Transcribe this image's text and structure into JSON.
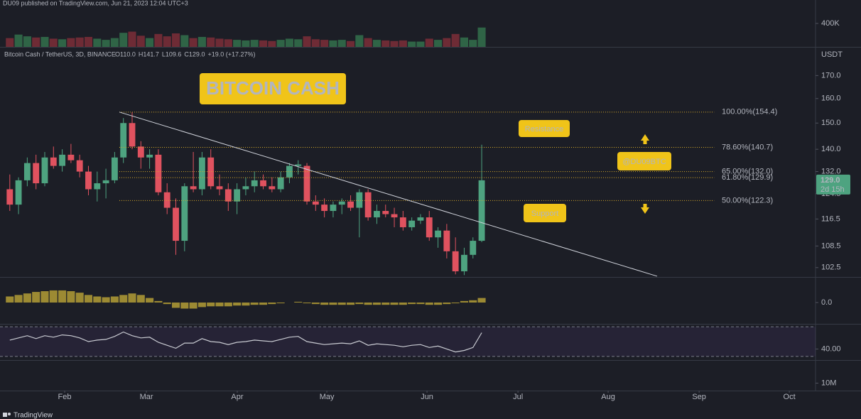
{
  "header": "DU09 published on TradingView.com, Jun 21, 2023 12:04 UTC+3",
  "footer": "TradingView",
  "chart_data": [
    {
      "type": "candlestick",
      "symbol": "Bitcoin Cash / TetherUS, 3D, BINANCE",
      "ohlc_label": [
        "O110.0",
        "H141.7",
        "L109.6",
        "C129.0",
        "+19.0 (+17.27%)"
      ],
      "currency": "USDT",
      "last_price_label": "129.0",
      "countdown": "2d 15h",
      "annotations": [
        "BITCOIN CASH",
        "Resistance",
        "Support",
        "@DU09BTC"
      ],
      "up_color": "#4ea380",
      "down_color": "#e0525f",
      "log": true,
      "xlim": [
        -1.12,
        92.2
      ],
      "xticks": [
        {
          "value": 6.28,
          "label": "Feb"
        },
        {
          "value": 15.63,
          "label": "Mar"
        },
        {
          "value": 26.03,
          "label": "Apr"
        },
        {
          "value": 36.28,
          "label": "May"
        },
        {
          "value": 47.74,
          "label": "Jun"
        },
        {
          "value": 58.15,
          "label": "Jul"
        },
        {
          "value": 68.47,
          "label": "Aug"
        },
        {
          "value": 78.88,
          "label": "Sep"
        },
        {
          "value": 89.2,
          "label": "Oct"
        }
      ],
      "ylim": [
        100,
        183
      ],
      "yticks": [
        102.5,
        108.5,
        116.5,
        124.5,
        {
          "value": 132,
          "label": "132.0"
        },
        {
          "value": 140,
          "label": "140.0"
        },
        {
          "value": 150,
          "label": "150.0"
        },
        {
          "value": 160,
          "label": "160.0"
        },
        {
          "value": 170,
          "label": "170.0"
        }
      ],
      "open": [
        126,
        121,
        129,
        135,
        128,
        137,
        134,
        138,
        136,
        132,
        126,
        128,
        129,
        137,
        150,
        141,
        137,
        138,
        125,
        120,
        110,
        127,
        126,
        137,
        127,
        126,
        122,
        126,
        127,
        129,
        127,
        126,
        130,
        134,
        134,
        122,
        121,
        119,
        121,
        122,
        120,
        125,
        117,
        119,
        118,
        117,
        114,
        116,
        117,
        111,
        113,
        107,
        101.5,
        106,
        110
      ],
      "high": [
        131,
        130,
        137,
        138,
        139,
        141,
        140,
        142,
        138,
        134,
        132,
        133,
        139,
        152,
        154.4,
        143,
        140,
        140,
        128,
        123,
        128,
        139,
        139,
        140,
        131,
        128,
        128,
        130,
        132,
        131,
        130,
        132,
        135,
        136,
        135,
        124,
        123,
        122,
        123,
        124,
        126,
        126,
        121,
        121,
        120,
        119,
        117,
        118,
        119,
        114,
        115,
        111,
        108,
        111,
        141.7
      ],
      "low": [
        119,
        118,
        127,
        126,
        127,
        133,
        132,
        135,
        130,
        124,
        122,
        123,
        128,
        135,
        140,
        133,
        133,
        124,
        118,
        106,
        107,
        125,
        124,
        126,
        124,
        119,
        118,
        124,
        125,
        126,
        125,
        125,
        128,
        131,
        121,
        119,
        117,
        117,
        118,
        119,
        111,
        116,
        115,
        117,
        114,
        113,
        113,
        115,
        110,
        108,
        105,
        100.7,
        100.5,
        105,
        109.6
      ],
      "close": [
        121,
        129,
        135,
        128,
        137,
        134,
        138,
        136,
        132,
        126,
        128,
        129,
        137,
        150,
        141,
        137,
        138,
        125,
        120,
        110,
        127,
        126,
        137,
        127,
        126,
        122,
        126,
        127,
        129,
        127,
        126,
        130,
        134,
        134.5,
        122,
        121,
        119,
        121,
        122,
        120,
        125,
        117,
        119,
        118,
        117,
        114,
        116,
        117,
        111,
        113,
        107,
        101.5,
        106,
        110,
        129.0
      ],
      "fib_color": "#d4a82a",
      "fib_levels": [
        {
          "value": 154.4,
          "label": "100.00%(154.4)"
        },
        {
          "value": 140.7,
          "label": "78.60%(140.7)"
        },
        {
          "value": 132.0,
          "label": "65.00%(132.0)"
        },
        {
          "value": 129.9,
          "label": "61.80%(129.9)"
        },
        {
          "value": 122.3,
          "label": "50.00%(122.3)"
        }
      ],
      "fib_x": [
        12.54,
        80.6
      ],
      "trendline": {
        "x": [
          12.54,
          74.07
        ],
        "y": [
          154.4,
          100.2
        ],
        "color": "#d1d4dc"
      }
    },
    {
      "type": "bar",
      "name": "volume",
      "up_color": "#2f6446",
      "down_color": "#6e2b35",
      "ylim": [
        0,
        800000
      ],
      "yticks": [
        {
          "value": 400000,
          "label": "400K"
        }
      ],
      "values": [
        150000,
        210000,
        180000,
        160000,
        170000,
        140000,
        130000,
        150000,
        160000,
        170000,
        140000,
        120000,
        150000,
        240000,
        260000,
        190000,
        150000,
        220000,
        180000,
        230000,
        200000,
        150000,
        170000,
        160000,
        140000,
        130000,
        120000,
        110000,
        120000,
        110000,
        100000,
        120000,
        140000,
        130000,
        180000,
        130000,
        120000,
        110000,
        120000,
        100000,
        200000,
        150000,
        120000,
        110000,
        100000,
        110000,
        90000,
        90000,
        140000,
        120000,
        150000,
        220000,
        160000,
        120000,
        330000
      ]
    },
    {
      "type": "bar",
      "name": "macd",
      "color": "#9c8a33",
      "ylim": [
        -3,
        3
      ],
      "yticks": [
        {
          "value": 0,
          "label": "0.0"
        }
      ],
      "values": [
        0.8,
        1.0,
        1.2,
        1.4,
        1.5,
        1.6,
        1.6,
        1.5,
        1.3,
        1.0,
        0.8,
        0.7,
        0.8,
        1.0,
        1.2,
        1.0,
        0.6,
        0.2,
        -0.2,
        -0.7,
        -0.8,
        -0.8,
        -0.6,
        -0.5,
        -0.5,
        -0.5,
        -0.4,
        -0.4,
        -0.3,
        -0.3,
        -0.2,
        -0.1,
        0.0,
        0.1,
        -0.1,
        -0.2,
        -0.3,
        -0.3,
        -0.3,
        -0.3,
        -0.2,
        -0.3,
        -0.3,
        -0.3,
        -0.3,
        -0.3,
        -0.2,
        -0.2,
        -0.3,
        -0.3,
        -0.2,
        -0.1,
        0.2,
        0.3,
        0.6
      ]
    },
    {
      "type": "line",
      "name": "rsi",
      "color": "#c9cbd2",
      "band": [
        30,
        70
      ],
      "band_color": "#7e57c2",
      "ylim": [
        26,
        74
      ],
      "yticks": [
        {
          "value": 40,
          "label": "40.00"
        }
      ],
      "values": [
        52,
        55,
        58,
        54,
        58,
        56,
        59,
        58,
        55,
        50,
        52,
        53,
        57,
        63,
        58,
        55,
        56,
        49,
        45,
        41,
        48,
        48,
        54,
        50,
        49,
        46,
        49,
        50,
        52,
        51,
        50,
        53,
        56,
        57,
        50,
        48,
        46,
        47,
        48,
        47,
        51,
        45,
        47,
        46,
        45,
        43,
        45,
        46,
        42,
        44,
        40,
        36,
        38,
        42,
        62
      ]
    },
    {
      "type": "empty",
      "name": "lower",
      "ylim": [
        0,
        40000000
      ],
      "yticks": [
        {
          "value": 10000000,
          "label": "10M"
        }
      ]
    }
  ]
}
